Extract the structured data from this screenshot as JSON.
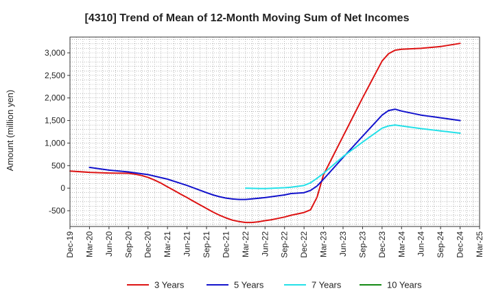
{
  "chart_data": {
    "type": "line",
    "title": "[4310]  Trend of Mean of 12-Month Moving Sum of Net Incomes",
    "ylabel": "Amount (million yen)",
    "xlabel": "",
    "ylim": [
      -850,
      3350
    ],
    "yticks": [
      -500,
      0,
      500,
      1000,
      1500,
      2000,
      2500,
      3000
    ],
    "ytick_labels": [
      "-500",
      "0",
      "500",
      "1,000",
      "1,500",
      "2,000",
      "2,500",
      "3,000"
    ],
    "x_range": [
      "2019-12",
      "2025-03"
    ],
    "xtick_labels": [
      "Dec-19",
      "Mar-20",
      "Jun-20",
      "Sep-20",
      "Dec-20",
      "Mar-21",
      "Jun-21",
      "Sep-21",
      "Dec-21",
      "Mar-22",
      "Jun-22",
      "Sep-22",
      "Dec-22",
      "Mar-23",
      "Jun-23",
      "Sep-23",
      "Dec-23",
      "Mar-24",
      "Jun-24",
      "Sep-24",
      "Dec-24",
      "Mar-25"
    ],
    "grid": true,
    "legend_position": "bottom",
    "series": [
      {
        "name": "3 Years",
        "color": "#dd1111",
        "x": [
          "2019-12",
          "2020-03",
          "2020-06",
          "2020-09",
          "2020-10",
          "2020-11",
          "2020-12",
          "2021-01",
          "2021-02",
          "2021-03",
          "2021-04",
          "2021-05",
          "2021-06",
          "2021-07",
          "2021-08",
          "2021-09",
          "2021-10",
          "2021-11",
          "2021-12",
          "2022-01",
          "2022-02",
          "2022-03",
          "2022-04",
          "2022-05",
          "2022-06",
          "2022-07",
          "2022-08",
          "2022-09",
          "2022-10",
          "2022-11",
          "2022-12",
          "2023-01",
          "2023-02",
          "2023-03",
          "2023-06",
          "2023-09",
          "2023-12",
          "2024-01",
          "2024-02",
          "2024-03",
          "2024-06",
          "2024-09",
          "2024-12"
        ],
        "values": [
          380,
          350,
          335,
          330,
          310,
          280,
          240,
          180,
          110,
          30,
          -50,
          -130,
          -210,
          -290,
          -370,
          -450,
          -530,
          -600,
          -660,
          -710,
          -740,
          -760,
          -760,
          -745,
          -720,
          -700,
          -670,
          -640,
          -600,
          -570,
          -540,
          -480,
          -200,
          300,
          1150,
          2000,
          2820,
          2980,
          3060,
          3080,
          3100,
          3140,
          3210
        ]
      },
      {
        "name": "5 Years",
        "color": "#1111cc",
        "x": [
          "2020-03",
          "2020-06",
          "2020-09",
          "2020-12",
          "2021-03",
          "2021-06",
          "2021-09",
          "2021-10",
          "2021-11",
          "2021-12",
          "2022-01",
          "2022-02",
          "2022-03",
          "2022-06",
          "2022-09",
          "2022-10",
          "2022-11",
          "2022-12",
          "2023-01",
          "2023-02",
          "2023-03",
          "2023-06",
          "2023-09",
          "2023-12",
          "2024-01",
          "2024-02",
          "2024-03",
          "2024-06",
          "2024-09",
          "2024-12"
        ],
        "values": [
          460,
          400,
          360,
          300,
          200,
          60,
          -100,
          -150,
          -190,
          -220,
          -240,
          -250,
          -250,
          -210,
          -150,
          -120,
          -110,
          -100,
          -50,
          50,
          200,
          680,
          1150,
          1620,
          1720,
          1750,
          1710,
          1620,
          1560,
          1500
        ]
      },
      {
        "name": "7 Years",
        "color": "#22e0e8",
        "x": [
          "2022-03",
          "2022-06",
          "2022-09",
          "2022-10",
          "2022-11",
          "2022-12",
          "2023-01",
          "2023-02",
          "2023-03",
          "2023-06",
          "2023-09",
          "2023-12",
          "2024-01",
          "2024-02",
          "2024-03",
          "2024-06",
          "2024-09",
          "2024-12"
        ],
        "values": [
          0,
          -10,
          10,
          20,
          40,
          60,
          120,
          220,
          330,
          700,
          1020,
          1330,
          1380,
          1400,
          1380,
          1320,
          1270,
          1220
        ]
      },
      {
        "name": "10 Years",
        "color": "#118811",
        "x": [],
        "values": []
      }
    ]
  }
}
